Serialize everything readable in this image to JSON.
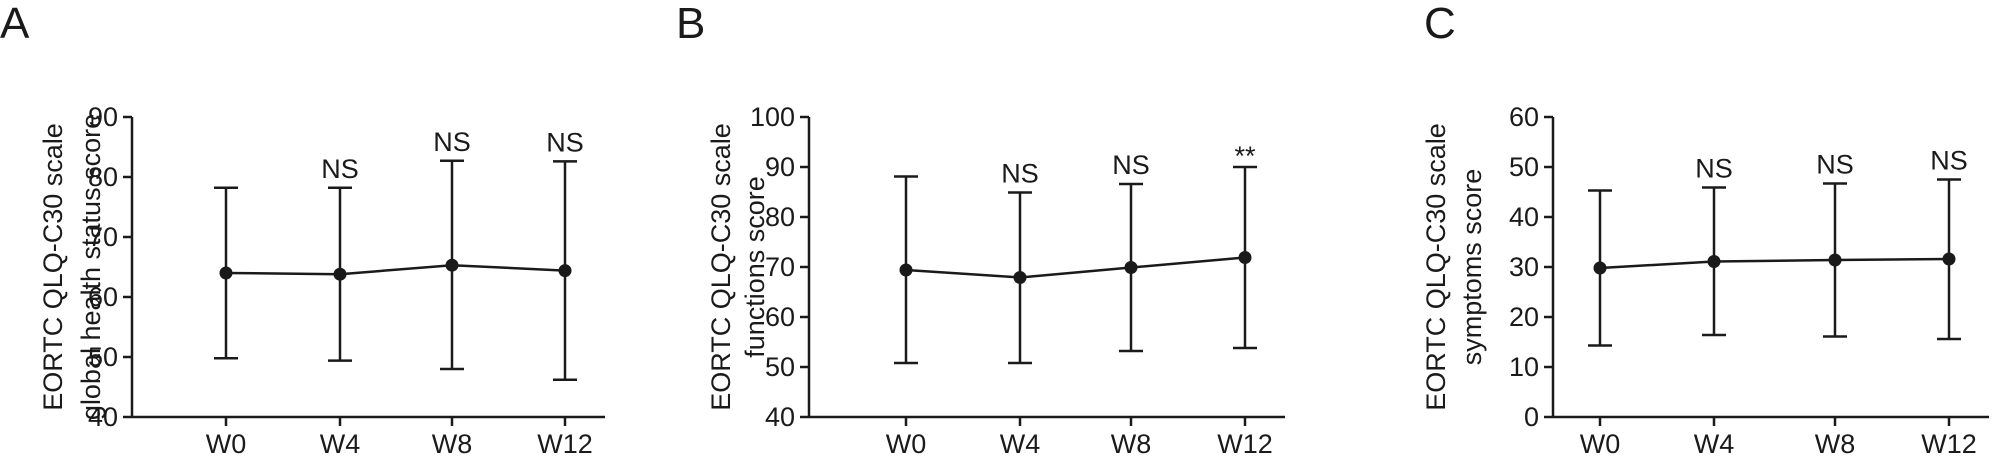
{
  "chart_data": [
    {
      "panel": "A",
      "type": "line",
      "ylabel": [
        "EORTC QLQ-C30 scale",
        "global health status score"
      ],
      "ylim": [
        40,
        90
      ],
      "yticks": [
        40,
        50,
        60,
        70,
        80,
        90
      ],
      "categories": [
        "W0",
        "W4",
        "W8",
        "W12"
      ],
      "series": [
        {
          "values": [
            64.0,
            63.8,
            65.3,
            64.4
          ],
          "error_low": [
            49.8,
            49.4,
            48.0,
            46.2
          ],
          "error_high": [
            78.2,
            78.2,
            82.7,
            82.6
          ]
        }
      ],
      "annotations": [
        "",
        "NS",
        "NS",
        "NS"
      ]
    },
    {
      "panel": "B",
      "type": "line",
      "ylabel": [
        "EORTC QLQ-C30 scale",
        "functions score"
      ],
      "ylim": [
        40,
        100
      ],
      "yticks": [
        40,
        50,
        60,
        70,
        80,
        90,
        100
      ],
      "categories": [
        "W0",
        "W4",
        "W8",
        "W12"
      ],
      "series": [
        {
          "values": [
            69.4,
            67.9,
            69.9,
            71.9
          ],
          "error_low": [
            50.8,
            50.8,
            53.2,
            53.8
          ],
          "error_high": [
            88.1,
            84.9,
            86.6,
            90.0
          ]
        }
      ],
      "annotations": [
        "",
        "NS",
        "NS",
        "**"
      ]
    },
    {
      "panel": "C",
      "type": "line",
      "ylabel": [
        "EORTC QLQ-C30 scale",
        "symptoms score"
      ],
      "ylim": [
        0,
        60
      ],
      "yticks": [
        0,
        10,
        20,
        30,
        40,
        50,
        60
      ],
      "categories": [
        "W0",
        "W4",
        "W8",
        "W12"
      ],
      "series": [
        {
          "values": [
            29.8,
            31.1,
            31.4,
            31.6
          ],
          "error_low": [
            14.3,
            16.4,
            16.1,
            15.6
          ],
          "error_high": [
            45.3,
            45.9,
            46.7,
            47.5
          ]
        }
      ],
      "annotations": [
        "",
        "NS",
        "NS",
        "NS"
      ]
    }
  ]
}
